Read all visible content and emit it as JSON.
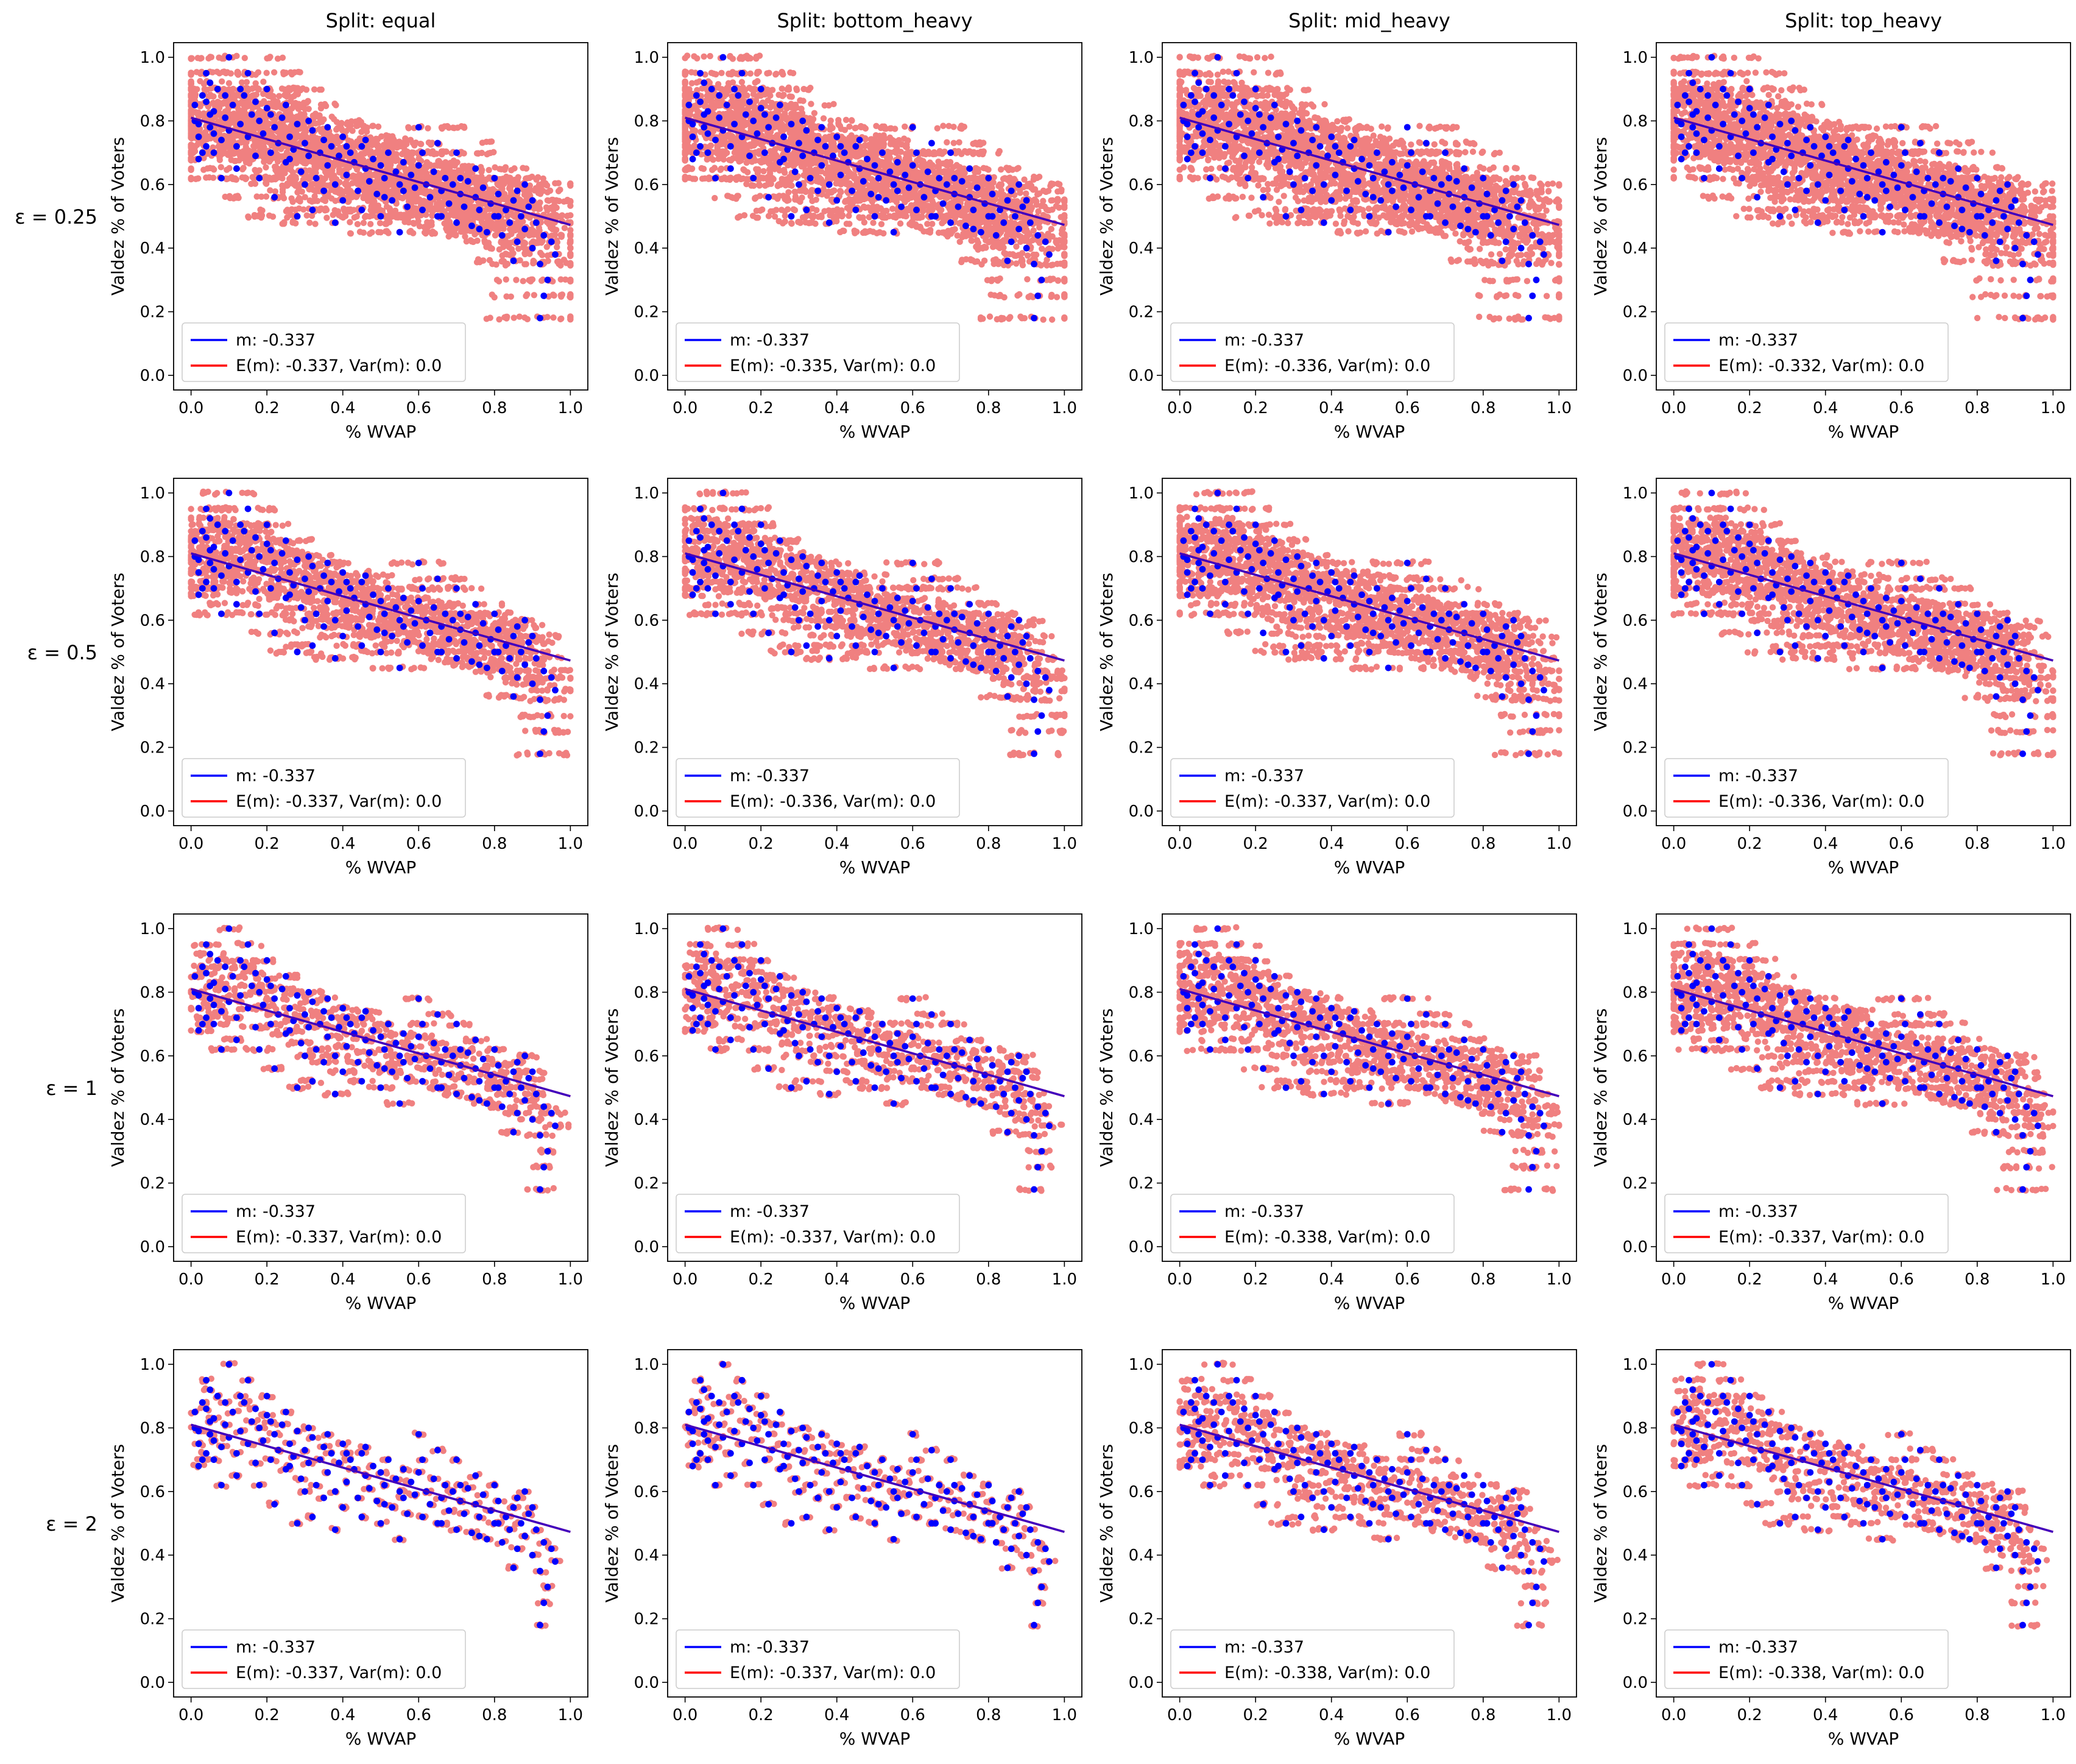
{
  "figure": {
    "column_titles": [
      "Split: equal",
      "Split: bottom_heavy",
      "Split: mid_heavy",
      "Split: top_heavy"
    ],
    "row_labels": [
      "ε = 0.25",
      "ε = 0.5",
      "ε = 1",
      "ε = 2"
    ],
    "xlabel": "% WVAP",
    "ylabel": "Valdez % of Voters",
    "colors": {
      "true_points": "#0000ff",
      "noisy_points": "#f08080",
      "true_fit": "#0000ff",
      "expected_fit": "#ff0000"
    }
  },
  "chart_data": [
    {
      "type": "scatter",
      "row": 0,
      "col": 0,
      "title": "Split: equal",
      "xlabel": "% WVAP",
      "ylabel": "Valdez % of Voters",
      "xlim": [
        0,
        1
      ],
      "ylim": [
        0,
        1
      ],
      "xticks": [
        0,
        0.2,
        0.4,
        0.6,
        0.8,
        1
      ],
      "yticks": [
        0,
        0.2,
        0.4,
        0.6,
        0.8,
        1
      ],
      "fit": {
        "slope": -0.337,
        "intercept": 0.81
      },
      "legend": [
        "m: -0.337",
        "E(m): -0.337, Var(m): 0.0"
      ],
      "legend_loc": "lower-left",
      "noise_spread": 0.18,
      "noise_count": 22
    },
    {
      "type": "scatter",
      "row": 0,
      "col": 1,
      "title": "Split: bottom_heavy",
      "xlabel": "% WVAP",
      "ylabel": "Valdez % of Voters",
      "xlim": [
        0,
        1
      ],
      "ylim": [
        0,
        1
      ],
      "xticks": [
        0,
        0.2,
        0.4,
        0.6,
        0.8,
        1
      ],
      "yticks": [
        0,
        0.2,
        0.4,
        0.6,
        0.8,
        1
      ],
      "fit": {
        "slope": -0.337,
        "intercept": 0.81
      },
      "legend": [
        "m: -0.337",
        "E(m): -0.335, Var(m): 0.0"
      ],
      "legend_loc": "lower-left",
      "noise_spread": 0.18,
      "noise_count": 22
    },
    {
      "type": "scatter",
      "row": 0,
      "col": 2,
      "title": "Split: mid_heavy",
      "xlabel": "% WVAP",
      "ylabel": "Valdez % of Voters",
      "xlim": [
        0,
        1
      ],
      "ylim": [
        0,
        1
      ],
      "xticks": [
        0,
        0.2,
        0.4,
        0.6,
        0.8,
        1
      ],
      "yticks": [
        0,
        0.2,
        0.4,
        0.6,
        0.8,
        1
      ],
      "fit": {
        "slope": -0.337,
        "intercept": 0.81
      },
      "legend": [
        "m: -0.337",
        "E(m): -0.336, Var(m): 0.0"
      ],
      "legend_loc": "lower-left",
      "noise_spread": 0.18,
      "noise_count": 22
    },
    {
      "type": "scatter",
      "row": 0,
      "col": 3,
      "title": "Split: top_heavy",
      "xlabel": "% WVAP",
      "ylabel": "Valdez % of Voters",
      "xlim": [
        0,
        1
      ],
      "ylim": [
        0,
        1
      ],
      "xticks": [
        0,
        0.2,
        0.4,
        0.6,
        0.8,
        1
      ],
      "yticks": [
        0,
        0.2,
        0.4,
        0.6,
        0.8,
        1
      ],
      "fit": {
        "slope": -0.337,
        "intercept": 0.81
      },
      "legend": [
        "m: -0.337",
        "E(m): -0.332, Var(m): 0.0"
      ],
      "legend_loc": "lower-left",
      "noise_spread": 0.18,
      "noise_count": 22
    },
    {
      "type": "scatter",
      "row": 1,
      "col": 0,
      "xlabel": "% WVAP",
      "ylabel": "Valdez % of Voters",
      "xlim": [
        0,
        1
      ],
      "ylim": [
        0,
        1
      ],
      "xticks": [
        0,
        0.2,
        0.4,
        0.6,
        0.8,
        1
      ],
      "yticks": [
        0,
        0.2,
        0.4,
        0.6,
        0.8,
        1
      ],
      "fit": {
        "slope": -0.337,
        "intercept": 0.81
      },
      "legend": [
        "m: -0.337",
        "E(m): -0.337, Var(m): 0.0"
      ],
      "legend_loc": "lower-left",
      "noise_spread": 0.09,
      "noise_count": 14
    },
    {
      "type": "scatter",
      "row": 1,
      "col": 1,
      "xlabel": "% WVAP",
      "ylabel": "Valdez % of Voters",
      "xlim": [
        0,
        1
      ],
      "ylim": [
        0,
        1
      ],
      "xticks": [
        0,
        0.2,
        0.4,
        0.6,
        0.8,
        1
      ],
      "yticks": [
        0,
        0.2,
        0.4,
        0.6,
        0.8,
        1
      ],
      "fit": {
        "slope": -0.337,
        "intercept": 0.81
      },
      "legend": [
        "m: -0.337",
        "E(m): -0.336, Var(m): 0.0"
      ],
      "legend_loc": "lower-left",
      "noise_spread": 0.09,
      "noise_count": 14
    },
    {
      "type": "scatter",
      "row": 1,
      "col": 2,
      "xlabel": "% WVAP",
      "ylabel": "Valdez % of Voters",
      "xlim": [
        0,
        1
      ],
      "ylim": [
        0,
        1
      ],
      "xticks": [
        0,
        0.2,
        0.4,
        0.6,
        0.8,
        1
      ],
      "yticks": [
        0,
        0.2,
        0.4,
        0.6,
        0.8,
        1
      ],
      "fit": {
        "slope": -0.337,
        "intercept": 0.81
      },
      "legend": [
        "m: -0.337",
        "E(m): -0.337, Var(m): 0.0"
      ],
      "legend_loc": "lower-left",
      "noise_spread": 0.12,
      "noise_count": 16
    },
    {
      "type": "scatter",
      "row": 1,
      "col": 3,
      "xlabel": "% WVAP",
      "ylabel": "Valdez % of Voters",
      "xlim": [
        0,
        1
      ],
      "ylim": [
        0,
        1
      ],
      "xticks": [
        0,
        0.2,
        0.4,
        0.6,
        0.8,
        1
      ],
      "yticks": [
        0,
        0.2,
        0.4,
        0.6,
        0.8,
        1
      ],
      "fit": {
        "slope": -0.337,
        "intercept": 0.81
      },
      "legend": [
        "m: -0.337",
        "E(m): -0.336, Var(m): 0.0"
      ],
      "legend_loc": "lower-left",
      "noise_spread": 0.12,
      "noise_count": 16
    },
    {
      "type": "scatter",
      "row": 2,
      "col": 0,
      "xlabel": "% WVAP",
      "ylabel": "Valdez % of Voters",
      "xlim": [
        0,
        1
      ],
      "ylim": [
        0,
        1
      ],
      "xticks": [
        0,
        0.2,
        0.4,
        0.6,
        0.8,
        1
      ],
      "yticks": [
        0,
        0.2,
        0.4,
        0.6,
        0.8,
        1
      ],
      "fit": {
        "slope": -0.337,
        "intercept": 0.81
      },
      "legend": [
        "m: -0.337",
        "E(m): -0.337, Var(m): 0.0"
      ],
      "legend_loc": "lower-left",
      "noise_spread": 0.045,
      "noise_count": 8
    },
    {
      "type": "scatter",
      "row": 2,
      "col": 1,
      "xlabel": "% WVAP",
      "ylabel": "Valdez % of Voters",
      "xlim": [
        0,
        1
      ],
      "ylim": [
        0,
        1
      ],
      "xticks": [
        0,
        0.2,
        0.4,
        0.6,
        0.8,
        1
      ],
      "yticks": [
        0,
        0.2,
        0.4,
        0.6,
        0.8,
        1
      ],
      "fit": {
        "slope": -0.337,
        "intercept": 0.81
      },
      "legend": [
        "m: -0.337",
        "E(m): -0.337, Var(m): 0.0"
      ],
      "legend_loc": "lower-left",
      "noise_spread": 0.05,
      "noise_count": 8
    },
    {
      "type": "scatter",
      "row": 2,
      "col": 2,
      "xlabel": "% WVAP",
      "ylabel": "Valdez % of Voters",
      "xlim": [
        0,
        1
      ],
      "ylim": [
        0,
        1
      ],
      "xticks": [
        0,
        0.2,
        0.4,
        0.6,
        0.8,
        1
      ],
      "yticks": [
        0,
        0.2,
        0.4,
        0.6,
        0.8,
        1
      ],
      "fit": {
        "slope": -0.337,
        "intercept": 0.81
      },
      "legend": [
        "m: -0.337",
        "E(m): -0.338, Var(m): 0.0"
      ],
      "legend_loc": "lower-left",
      "noise_spread": 0.08,
      "noise_count": 11
    },
    {
      "type": "scatter",
      "row": 2,
      "col": 3,
      "xlabel": "% WVAP",
      "ylabel": "Valdez % of Voters",
      "xlim": [
        0,
        1
      ],
      "ylim": [
        0,
        1
      ],
      "xticks": [
        0,
        0.2,
        0.4,
        0.6,
        0.8,
        1
      ],
      "yticks": [
        0,
        0.2,
        0.4,
        0.6,
        0.8,
        1
      ],
      "fit": {
        "slope": -0.337,
        "intercept": 0.81
      },
      "legend": [
        "m: -0.337",
        "E(m): -0.337, Var(m): 0.0"
      ],
      "legend_loc": "lower-left",
      "noise_spread": 0.09,
      "noise_count": 12
    },
    {
      "type": "scatter",
      "row": 3,
      "col": 0,
      "xlabel": "% WVAP",
      "ylabel": "Valdez % of Voters",
      "xlim": [
        0,
        1
      ],
      "ylim": [
        0,
        1
      ],
      "xticks": [
        0,
        0.2,
        0.4,
        0.6,
        0.8,
        1
      ],
      "yticks": [
        0,
        0.2,
        0.4,
        0.6,
        0.8,
        1
      ],
      "fit": {
        "slope": -0.337,
        "intercept": 0.81
      },
      "legend": [
        "m: -0.337",
        "E(m): -0.337, Var(m): 0.0"
      ],
      "legend_loc": "lower-left",
      "noise_spread": 0.02,
      "noise_count": 4
    },
    {
      "type": "scatter",
      "row": 3,
      "col": 1,
      "xlabel": "% WVAP",
      "ylabel": "Valdez % of Voters",
      "xlim": [
        0,
        1
      ],
      "ylim": [
        0,
        1
      ],
      "xticks": [
        0,
        0.2,
        0.4,
        0.6,
        0.8,
        1
      ],
      "yticks": [
        0,
        0.2,
        0.4,
        0.6,
        0.8,
        1
      ],
      "fit": {
        "slope": -0.337,
        "intercept": 0.81
      },
      "legend": [
        "m: -0.337",
        "E(m): -0.337, Var(m): 0.0"
      ],
      "legend_loc": "lower-left",
      "noise_spread": 0.02,
      "noise_count": 4
    },
    {
      "type": "scatter",
      "row": 3,
      "col": 2,
      "xlabel": "% WVAP",
      "ylabel": "Valdez % of Voters",
      "xlim": [
        0,
        1
      ],
      "ylim": [
        0,
        1
      ],
      "xticks": [
        0,
        0.2,
        0.4,
        0.6,
        0.8,
        1
      ],
      "yticks": [
        0,
        0.2,
        0.4,
        0.6,
        0.8,
        1
      ],
      "fit": {
        "slope": -0.337,
        "intercept": 0.81
      },
      "legend": [
        "m: -0.337",
        "E(m): -0.338, Var(m): 0.0"
      ],
      "legend_loc": "lower-left",
      "noise_spread": 0.05,
      "noise_count": 7
    },
    {
      "type": "scatter",
      "row": 3,
      "col": 3,
      "xlabel": "% WVAP",
      "ylabel": "Valdez % of Voters",
      "xlim": [
        0,
        1
      ],
      "ylim": [
        0,
        1
      ],
      "xticks": [
        0,
        0.2,
        0.4,
        0.6,
        0.8,
        1
      ],
      "yticks": [
        0,
        0.2,
        0.4,
        0.6,
        0.8,
        1
      ],
      "fit": {
        "slope": -0.337,
        "intercept": 0.81
      },
      "legend": [
        "m: -0.337",
        "E(m): -0.338, Var(m): 0.0"
      ],
      "legend_loc": "lower-left",
      "noise_spread": 0.05,
      "noise_count": 7
    }
  ],
  "points": [
    [
      0.01,
      0.85
    ],
    [
      0.02,
      0.79
    ],
    [
      0.03,
      0.88
    ],
    [
      0.04,
      0.72
    ],
    [
      0.05,
      0.82
    ],
    [
      0.06,
      0.76
    ],
    [
      0.07,
      0.9
    ],
    [
      0.02,
      0.75
    ],
    [
      0.01,
      0.8
    ],
    [
      0.03,
      0.7
    ],
    [
      0.04,
      0.86
    ],
    [
      0.05,
      0.78
    ],
    [
      0.06,
      0.83
    ],
    [
      0.08,
      0.74
    ],
    [
      0.09,
      0.81
    ],
    [
      0.1,
      0.77
    ],
    [
      0.11,
      0.85
    ],
    [
      0.12,
      0.72
    ],
    [
      0.13,
      0.79
    ],
    [
      0.14,
      0.88
    ],
    [
      0.15,
      0.75
    ],
    [
      0.16,
      0.82
    ],
    [
      0.17,
      0.69
    ],
    [
      0.18,
      0.8
    ],
    [
      0.19,
      0.76
    ],
    [
      0.2,
      0.84
    ],
    [
      0.21,
      0.7
    ],
    [
      0.22,
      0.78
    ],
    [
      0.23,
      0.73
    ],
    [
      0.24,
      0.81
    ],
    [
      0.25,
      0.67
    ],
    [
      0.26,
      0.75
    ],
    [
      0.27,
      0.71
    ],
    [
      0.28,
      0.79
    ],
    [
      0.29,
      0.64
    ],
    [
      0.3,
      0.73
    ],
    [
      0.31,
      0.69
    ],
    [
      0.32,
      0.77
    ],
    [
      0.33,
      0.62
    ],
    [
      0.34,
      0.7
    ],
    [
      0.35,
      0.74
    ],
    [
      0.36,
      0.66
    ],
    [
      0.37,
      0.72
    ],
    [
      0.38,
      0.6
    ],
    [
      0.39,
      0.69
    ],
    [
      0.4,
      0.75
    ],
    [
      0.41,
      0.63
    ],
    [
      0.42,
      0.7
    ],
    [
      0.43,
      0.67
    ],
    [
      0.44,
      0.58
    ],
    [
      0.45,
      0.72
    ],
    [
      0.46,
      0.65
    ],
    [
      0.47,
      0.61
    ],
    [
      0.48,
      0.68
    ],
    [
      0.49,
      0.57
    ],
    [
      0.5,
      0.66
    ],
    [
      0.51,
      0.62
    ],
    [
      0.52,
      0.7
    ],
    [
      0.53,
      0.55
    ],
    [
      0.54,
      0.64
    ],
    [
      0.55,
      0.6
    ],
    [
      0.56,
      0.67
    ],
    [
      0.57,
      0.53
    ],
    [
      0.58,
      0.63
    ],
    [
      0.59,
      0.59
    ],
    [
      0.6,
      0.66
    ],
    [
      0.61,
      0.52
    ],
    [
      0.62,
      0.6
    ],
    [
      0.63,
      0.56
    ],
    [
      0.64,
      0.64
    ],
    [
      0.65,
      0.5
    ],
    [
      0.66,
      0.58
    ],
    [
      0.67,
      0.62
    ],
    [
      0.68,
      0.54
    ],
    [
      0.69,
      0.6
    ],
    [
      0.7,
      0.48
    ],
    [
      0.71,
      0.57
    ],
    [
      0.72,
      0.53
    ],
    [
      0.73,
      0.61
    ],
    [
      0.74,
      0.47
    ],
    [
      0.75,
      0.56
    ],
    [
      0.76,
      0.52
    ],
    [
      0.77,
      0.59
    ],
    [
      0.78,
      0.45
    ],
    [
      0.79,
      0.54
    ],
    [
      0.8,
      0.5
    ],
    [
      0.81,
      0.57
    ],
    [
      0.82,
      0.44
    ],
    [
      0.83,
      0.52
    ],
    [
      0.84,
      0.48
    ],
    [
      0.85,
      0.55
    ],
    [
      0.86,
      0.42
    ],
    [
      0.87,
      0.5
    ],
    [
      0.88,
      0.46
    ],
    [
      0.89,
      0.53
    ],
    [
      0.9,
      0.4
    ],
    [
      0.91,
      0.48
    ],
    [
      0.92,
      0.35
    ],
    [
      0.93,
      0.44
    ],
    [
      0.94,
      0.3
    ],
    [
      0.95,
      0.42
    ],
    [
      0.93,
      0.25
    ],
    [
      0.92,
      0.18
    ],
    [
      0.96,
      0.38
    ],
    [
      0.9,
      0.55
    ],
    [
      0.88,
      0.6
    ],
    [
      0.85,
      0.36
    ],
    [
      0.8,
      0.62
    ],
    [
      0.75,
      0.65
    ],
    [
      0.7,
      0.7
    ],
    [
      0.65,
      0.73
    ],
    [
      0.6,
      0.78
    ],
    [
      0.55,
      0.45
    ],
    [
      0.5,
      0.5
    ],
    [
      0.45,
      0.52
    ],
    [
      0.4,
      0.55
    ],
    [
      0.35,
      0.58
    ],
    [
      0.3,
      0.6
    ],
    [
      0.25,
      0.85
    ],
    [
      0.2,
      0.9
    ],
    [
      0.15,
      0.95
    ],
    [
      0.1,
      1.0
    ],
    [
      0.05,
      0.92
    ],
    [
      0.08,
      0.62
    ],
    [
      0.12,
      0.65
    ],
    [
      0.18,
      0.62
    ],
    [
      0.22,
      0.56
    ],
    [
      0.28,
      0.5
    ],
    [
      0.32,
      0.52
    ],
    [
      0.38,
      0.48
    ],
    [
      0.04,
      0.95
    ],
    [
      0.02,
      0.68
    ],
    [
      0.06,
      0.7
    ],
    [
      0.09,
      0.88
    ],
    [
      0.13,
      0.9
    ],
    [
      0.17,
      0.86
    ],
    [
      0.21,
      0.82
    ],
    [
      0.26,
      0.68
    ],
    [
      0.31,
      0.8
    ],
    [
      0.36,
      0.78
    ],
    [
      0.41,
      0.72
    ],
    [
      0.46,
      0.74
    ],
    [
      0.51,
      0.56
    ],
    [
      0.56,
      0.58
    ],
    [
      0.61,
      0.7
    ],
    [
      0.66,
      0.5
    ],
    [
      0.71,
      0.62
    ],
    [
      0.76,
      0.46
    ],
    [
      0.81,
      0.5
    ],
    [
      0.86,
      0.58
    ]
  ]
}
